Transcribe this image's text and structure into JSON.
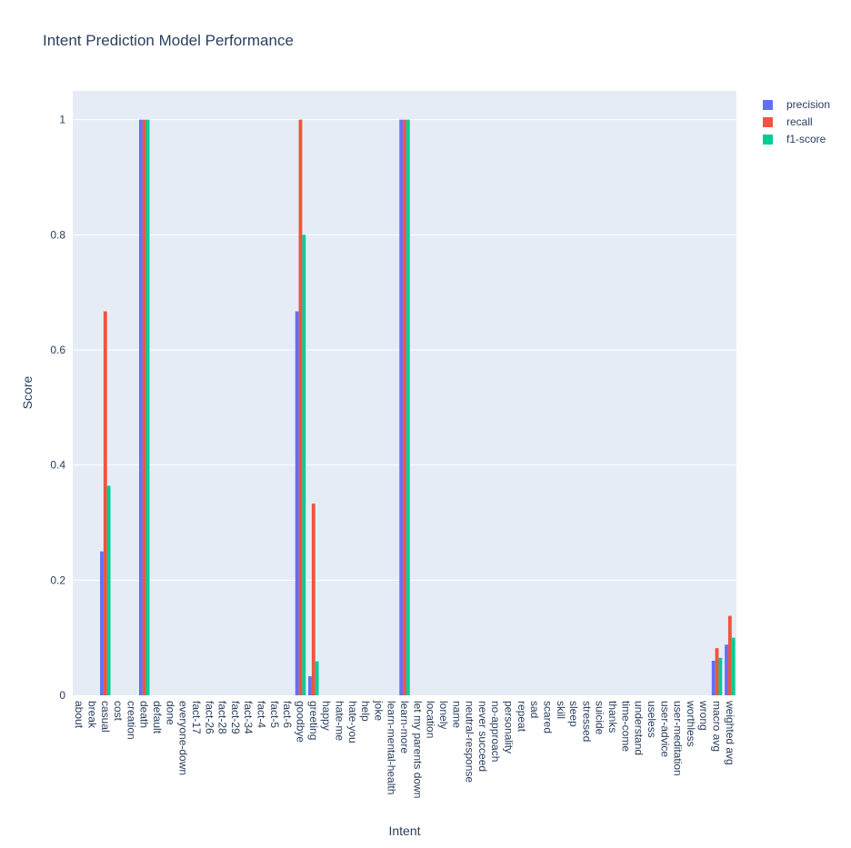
{
  "chart_data": {
    "type": "bar",
    "title": "Intent Prediction Model Performance",
    "xlabel": "Intent",
    "ylabel": "Score",
    "ylim": [
      0,
      1.05
    ],
    "yticks": [
      0,
      0.2,
      0.4,
      0.6,
      0.8,
      1
    ],
    "ytick_labels": [
      "0",
      "0.2",
      "0.4",
      "0.6",
      "0.8",
      "1"
    ],
    "grid": true,
    "legend_position": "top-right",
    "background": "#e5ecf6",
    "categories": [
      "about",
      "break",
      "casual",
      "cost",
      "creation",
      "death",
      "default",
      "done",
      "everyone-down",
      "fact-17",
      "fact-26",
      "fact-28",
      "fact-29",
      "fact-34",
      "fact-4",
      "fact-5",
      "fact-6",
      "goodbye",
      "greeting",
      "happy",
      "hate-me",
      "hate-you",
      "help",
      "joke",
      "learn-mental-health",
      "learn-more",
      "let my parents down",
      "location",
      "lonely",
      "name",
      "neutral-response",
      "never succeed",
      "no-approach",
      "personality",
      "repeat",
      "sad",
      "scared",
      "skill",
      "sleep",
      "stressed",
      "suicide",
      "thanks",
      "time-come",
      "understand",
      "useless",
      "user-advice",
      "user-meditation",
      "worthless",
      "wrong",
      "macro avg",
      "weighted avg"
    ],
    "series": [
      {
        "name": "precision",
        "color": "#636efa",
        "values": [
          0,
          0,
          0.25,
          0,
          0,
          1,
          0,
          0,
          0,
          0,
          0,
          0,
          0,
          0,
          0,
          0,
          0,
          0.667,
          0.033,
          0,
          0,
          0,
          0,
          0,
          0,
          1,
          0,
          0,
          0,
          0,
          0,
          0,
          0,
          0,
          0,
          0,
          0,
          0,
          0,
          0,
          0,
          0,
          0,
          0,
          0,
          0,
          0,
          0,
          0,
          0.06,
          0.088
        ]
      },
      {
        "name": "recall",
        "color": "#ef553b",
        "values": [
          0,
          0,
          0.667,
          0,
          0,
          1,
          0,
          0,
          0,
          0,
          0,
          0,
          0,
          0,
          0,
          0,
          0,
          1,
          0.333,
          0,
          0,
          0,
          0,
          0,
          0,
          1,
          0,
          0,
          0,
          0,
          0,
          0,
          0,
          0,
          0,
          0,
          0,
          0,
          0,
          0,
          0,
          0,
          0,
          0,
          0,
          0,
          0,
          0,
          0,
          0.082,
          0.138
        ]
      },
      {
        "name": "f1-score",
        "color": "#00cc96",
        "values": [
          0,
          0,
          0.364,
          0,
          0,
          1,
          0,
          0,
          0,
          0,
          0,
          0,
          0,
          0,
          0,
          0,
          0,
          0.8,
          0.059,
          0,
          0,
          0,
          0,
          0,
          0,
          1,
          0,
          0,
          0,
          0,
          0,
          0,
          0,
          0,
          0,
          0,
          0,
          0,
          0,
          0,
          0,
          0,
          0,
          0,
          0,
          0,
          0,
          0,
          0,
          0.065,
          0.1
        ]
      }
    ]
  }
}
